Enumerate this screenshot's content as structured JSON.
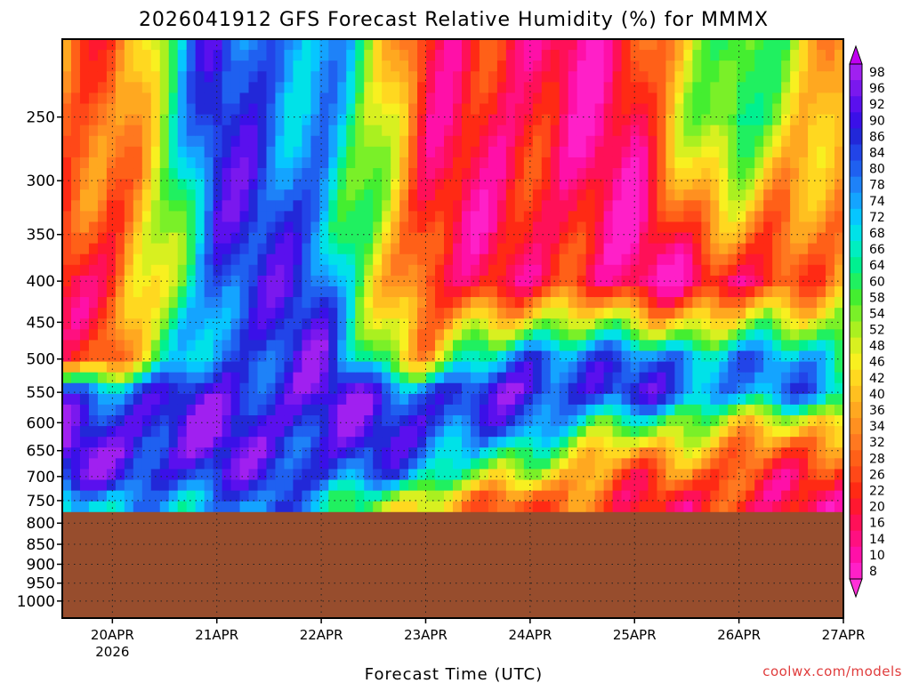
{
  "title": "2026041912 GFS Forecast Relative Humidity (%) for MMMX",
  "credit": "coolwx.com/models",
  "chart_data": {
    "type": "heatmap",
    "title": "2026041912 GFS Forecast Relative Humidity (%) for MMMX",
    "xlabel": "Forecast Time (UTC)",
    "ylabel": "",
    "y_axis_scale": "log-pressure (hPa), inverted",
    "ylim": [
      1050,
      200
    ],
    "y_ticks": [
      "250",
      "300",
      "350",
      "400",
      "450",
      "500",
      "550",
      "600",
      "650",
      "700",
      "750",
      "800",
      "850",
      "900",
      "950",
      "1000"
    ],
    "y_tick_values": [
      250,
      300,
      350,
      400,
      450,
      500,
      550,
      600,
      650,
      700,
      750,
      800,
      850,
      900,
      950,
      1000
    ],
    "x_ticks": [
      "20APR",
      "21APR",
      "22APR",
      "23APR",
      "24APR",
      "25APR",
      "26APR",
      "27APR"
    ],
    "x_tick_sub": "2026",
    "x_range_days_from_apr20": [
      -0.48,
      7.0
    ],
    "grid": true,
    "ground_color": "#974d2d",
    "ground_level_hpa": 775,
    "colorbar_labels": [
      "98",
      "96",
      "92",
      "90",
      "86",
      "84",
      "80",
      "78",
      "74",
      "72",
      "68",
      "66",
      "64",
      "60",
      "58",
      "54",
      "52",
      "48",
      "46",
      "42",
      "40",
      "36",
      "34",
      "32",
      "28",
      "26",
      "22",
      "20",
      "16",
      "14",
      "10",
      "8"
    ],
    "colorbar_colors": [
      "#a020f0",
      "#7a18ee",
      "#5a10ee",
      "#3a10e8",
      "#2228d8",
      "#2244e8",
      "#1f60f0",
      "#1e82f8",
      "#14a4ff",
      "#06c6ff",
      "#00e2e8",
      "#00eec0",
      "#00f090",
      "#20f060",
      "#44ee30",
      "#7af028",
      "#aaf020",
      "#d8f020",
      "#f8f020",
      "#ffd820",
      "#ffc020",
      "#ffa820",
      "#ff9020",
      "#ff7820",
      "#ff6018",
      "#ff4818",
      "#ff2a14",
      "#ff1830",
      "#ff1058",
      "#ff1080",
      "#ff10a8",
      "#ff20c8"
    ],
    "colorbar_arrow_top_color": "#c000f0",
    "colorbar_arrow_bottom_color": "#ff30d8",
    "sample_profiles": [
      {
        "x": 0.0,
        "levels": [
          250,
          400,
          500,
          550,
          600,
          650,
          700,
          750
        ],
        "rh": [
          30,
          20,
          30,
          85,
          92,
          94,
          90,
          70
        ]
      },
      {
        "x": 1.0,
        "levels": [
          250,
          400,
          500,
          550,
          600,
          650,
          700,
          750
        ],
        "rh": [
          88,
          86,
          84,
          90,
          94,
          92,
          88,
          80
        ]
      },
      {
        "x": 2.0,
        "levels": [
          250,
          400,
          500,
          550,
          600,
          650,
          700,
          750
        ],
        "rh": [
          78,
          86,
          90,
          94,
          92,
          90,
          86,
          76
        ]
      },
      {
        "x": 3.0,
        "levels": [
          250,
          400,
          500,
          550,
          600,
          650,
          700,
          750
        ],
        "rh": [
          24,
          18,
          40,
          86,
          90,
          84,
          70,
          40
        ]
      },
      {
        "x": 4.0,
        "levels": [
          250,
          400,
          500,
          550,
          600,
          650,
          700,
          750
        ],
        "rh": [
          16,
          22,
          88,
          92,
          80,
          60,
          44,
          30
        ]
      },
      {
        "x": 5.0,
        "levels": [
          250,
          400,
          500,
          550,
          600,
          650,
          700,
          750
        ],
        "rh": [
          18,
          14,
          80,
          88,
          60,
          40,
          30,
          24
        ]
      },
      {
        "x": 6.0,
        "levels": [
          250,
          400,
          500,
          550,
          600,
          650,
          700,
          750
        ],
        "rh": [
          72,
          14,
          80,
          78,
          50,
          36,
          26,
          20
        ]
      },
      {
        "x": 6.9,
        "levels": [
          250,
          400,
          500,
          550,
          600,
          650,
          700,
          750
        ],
        "rh": [
          30,
          40,
          70,
          76,
          40,
          28,
          22,
          20
        ]
      }
    ]
  }
}
